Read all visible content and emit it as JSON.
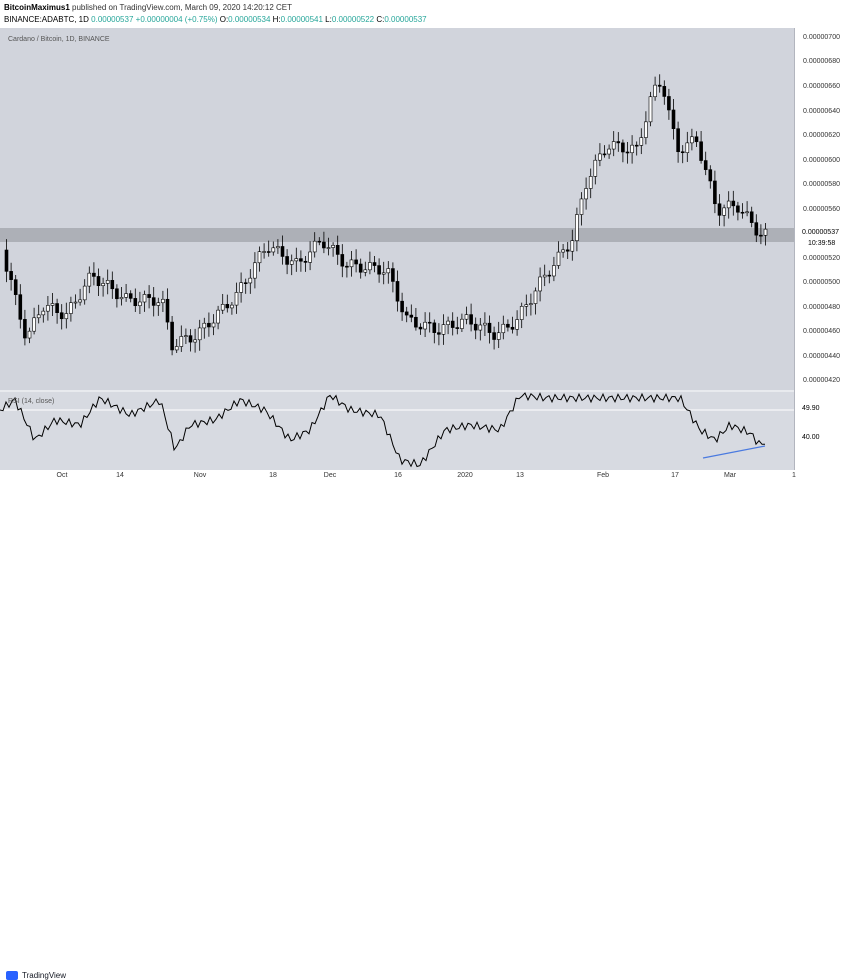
{
  "header": {
    "author": "BitcoinMaximus1",
    "published_text": "published on TradingView.com, March 09, 2020 14:20:12 CET",
    "symbol_line": "BINANCE:ADABTC, 1D",
    "last": "0.00000537",
    "change": "+0.00000004 (+0.75%)",
    "o_label": "O:",
    "o": "0.00000534",
    "h_label": "H:",
    "h": "0.00000541",
    "l_label": "L:",
    "l": "0.00000522",
    "c_label": "C:",
    "c": "0.00000537"
  },
  "chart": {
    "symbol_name": "Cardano / Bitcoin, 1D, BINANCE",
    "rsi_label": "RSI (14, close)",
    "price_tag": "0.00000537",
    "time_tag": "10:39:58",
    "rsi_level_value": "49.90",
    "rsi_tick": "40.00"
  },
  "chart_data": {
    "type": "candlestick",
    "y_ticks": [
      "0.00000700",
      "0.00000680",
      "0.00000660",
      "0.00000640",
      "0.00000620",
      "0.00000600",
      "0.00000580",
      "0.00000560",
      "0.00000520",
      "0.00000500",
      "0.00000480",
      "0.00000460",
      "0.00000440",
      "0.00000420"
    ],
    "x_ticks": [
      "Oct",
      "14",
      "Nov",
      "18",
      "Dec",
      "16",
      "2020",
      "13",
      "Feb",
      "17",
      "Mar",
      "1"
    ],
    "resistance_zone": [
      5.28e-06,
      5.41e-06
    ],
    "colors": {
      "up": "#ffffff",
      "down": "#000000",
      "zone": "#a7a9b0",
      "rsi_line": "#000000",
      "divergence": "#4a7ae0"
    }
  },
  "footer": {
    "brand": "TradingView"
  }
}
